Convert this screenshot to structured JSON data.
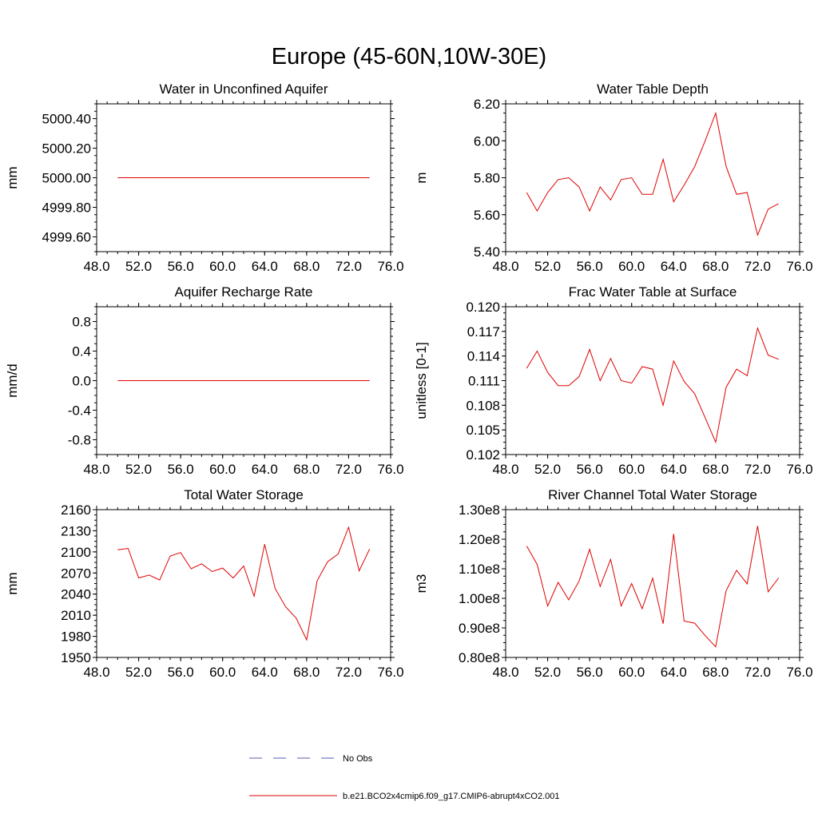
{
  "figure": {
    "title": "Europe (45-60N,10W-30E)"
  },
  "legend": {
    "entries": [
      {
        "label": "No Obs",
        "color": "#5a5ab4",
        "dash": true
      },
      {
        "label": "b.e21.BCO2x4cmip6.f09_g17.CMIP6-abrupt4xCO2.001",
        "color": "#e00000",
        "dash": false
      }
    ]
  },
  "chart_data": [
    {
      "type": "line",
      "title": "Water in Unconfined Aquifer",
      "xlabel": "",
      "ylabel": "mm",
      "xlim": [
        48,
        76
      ],
      "ylim": [
        4999.5,
        5000.5
      ],
      "xticks": [
        "48.0",
        "52.0",
        "56.0",
        "60.0",
        "64.0",
        "68.0",
        "72.0",
        "76.0"
      ],
      "xtick_values": [
        48,
        52,
        56,
        60,
        64,
        68,
        72,
        76
      ],
      "yticks": [
        "4999.60",
        "4999.80",
        "5000.00",
        "5000.20",
        "5000.40"
      ],
      "ytick_values": [
        4999.6,
        4999.8,
        5000.0,
        5000.2,
        5000.4
      ],
      "series": [
        {
          "color": "#e00000",
          "x": [
            50,
            51,
            52,
            53,
            54,
            55,
            56,
            57,
            58,
            59,
            60,
            61,
            62,
            63,
            64,
            65,
            66,
            67,
            68,
            69,
            70,
            71,
            72,
            73,
            74
          ],
          "y": [
            5000,
            5000,
            5000,
            5000,
            5000,
            5000,
            5000,
            5000,
            5000,
            5000,
            5000,
            5000,
            5000,
            5000,
            5000,
            5000,
            5000,
            5000,
            5000,
            5000,
            5000,
            5000,
            5000,
            5000,
            5000
          ]
        }
      ]
    },
    {
      "type": "line",
      "title": "Water Table Depth",
      "xlabel": "",
      "ylabel": "m",
      "xlim": [
        48,
        76
      ],
      "ylim": [
        5.4,
        6.2
      ],
      "xticks": [
        "48.0",
        "52.0",
        "56.0",
        "60.0",
        "64.0",
        "68.0",
        "72.0",
        "76.0"
      ],
      "xtick_values": [
        48,
        52,
        56,
        60,
        64,
        68,
        72,
        76
      ],
      "yticks": [
        "5.40",
        "5.60",
        "5.80",
        "6.00",
        "6.20"
      ],
      "ytick_values": [
        5.4,
        5.6,
        5.8,
        6.0,
        6.2
      ],
      "series": [
        {
          "color": "#e00000",
          "x": [
            50,
            51,
            52,
            53,
            54,
            55,
            56,
            57,
            58,
            59,
            60,
            61,
            62,
            63,
            64,
            65,
            66,
            67,
            68,
            69,
            70,
            71,
            72,
            73,
            74
          ],
          "y": [
            5.72,
            5.62,
            5.72,
            5.79,
            5.8,
            5.75,
            5.62,
            5.75,
            5.68,
            5.79,
            5.8,
            5.71,
            5.71,
            5.9,
            5.67,
            5.76,
            5.86,
            6.0,
            6.15,
            5.86,
            5.71,
            5.72,
            5.49,
            5.63,
            5.66
          ]
        }
      ]
    },
    {
      "type": "line",
      "title": "Aquifer Recharge Rate",
      "xlabel": "",
      "ylabel": "mm/d",
      "xlim": [
        48,
        76
      ],
      "ylim": [
        -1.0,
        1.0
      ],
      "xticks": [
        "48.0",
        "52.0",
        "56.0",
        "60.0",
        "64.0",
        "68.0",
        "72.0",
        "76.0"
      ],
      "xtick_values": [
        48,
        52,
        56,
        60,
        64,
        68,
        72,
        76
      ],
      "yticks": [
        "-0.8",
        "-0.4",
        "0.0",
        "0.4",
        "0.8"
      ],
      "ytick_values": [
        -0.8,
        -0.4,
        0.0,
        0.4,
        0.8
      ],
      "series": [
        {
          "color": "#e00000",
          "x": [
            50,
            51,
            52,
            53,
            54,
            55,
            56,
            57,
            58,
            59,
            60,
            61,
            62,
            63,
            64,
            65,
            66,
            67,
            68,
            69,
            70,
            71,
            72,
            73,
            74
          ],
          "y": [
            0,
            0,
            0,
            0,
            0,
            0,
            0,
            0,
            0,
            0,
            0,
            0,
            0,
            0,
            0,
            0,
            0,
            0,
            0,
            0,
            0,
            0,
            0,
            0,
            0
          ]
        }
      ]
    },
    {
      "type": "line",
      "title": "Frac Water Table at Surface",
      "xlabel": "",
      "ylabel": "unitless [0-1]",
      "xlim": [
        48,
        76
      ],
      "ylim": [
        0.102,
        0.12
      ],
      "xticks": [
        "48.0",
        "52.0",
        "56.0",
        "60.0",
        "64.0",
        "68.0",
        "72.0",
        "76.0"
      ],
      "xtick_values": [
        48,
        52,
        56,
        60,
        64,
        68,
        72,
        76
      ],
      "yticks": [
        "0.102",
        "0.105",
        "0.108",
        "0.111",
        "0.114",
        "0.117",
        "0.120"
      ],
      "ytick_values": [
        0.102,
        0.105,
        0.108,
        0.111,
        0.114,
        0.117,
        0.12
      ],
      "series": [
        {
          "color": "#e00000",
          "x": [
            50,
            51,
            52,
            53,
            54,
            55,
            56,
            57,
            58,
            59,
            60,
            61,
            62,
            63,
            64,
            65,
            66,
            67,
            68,
            69,
            70,
            71,
            72,
            73,
            74
          ],
          "y": [
            0.1125,
            0.1146,
            0.112,
            0.1104,
            0.1104,
            0.1115,
            0.1148,
            0.111,
            0.1137,
            0.111,
            0.1107,
            0.1127,
            0.1124,
            0.108,
            0.1134,
            0.1109,
            0.1094,
            0.1065,
            0.1035,
            0.1102,
            0.1124,
            0.1116,
            0.1174,
            0.1141,
            0.1136
          ]
        }
      ]
    },
    {
      "type": "line",
      "title": "Total Water Storage",
      "xlabel": "",
      "ylabel": "mm",
      "xlim": [
        48,
        76
      ],
      "ylim": [
        1950,
        2160
      ],
      "xticks": [
        "48.0",
        "52.0",
        "56.0",
        "60.0",
        "64.0",
        "68.0",
        "72.0",
        "76.0"
      ],
      "xtick_values": [
        48,
        52,
        56,
        60,
        64,
        68,
        72,
        76
      ],
      "yticks": [
        "1950",
        "1980",
        "2010",
        "2040",
        "2070",
        "2100",
        "2130",
        "2160"
      ],
      "ytick_values": [
        1950,
        1980,
        2010,
        2040,
        2070,
        2100,
        2130,
        2160
      ],
      "series": [
        {
          "color": "#e00000",
          "x": [
            50,
            51,
            52,
            53,
            54,
            55,
            56,
            57,
            58,
            59,
            60,
            61,
            62,
            63,
            64,
            65,
            66,
            67,
            68,
            69,
            70,
            71,
            72,
            73,
            74
          ],
          "y": [
            2103,
            2105,
            2063,
            2067,
            2060,
            2094,
            2099,
            2076,
            2083,
            2072,
            2077,
            2063,
            2080,
            2037,
            2111,
            2048,
            2022,
            2006,
            1975,
            2059,
            2086,
            2097,
            2135,
            2073,
            2104
          ]
        }
      ]
    },
    {
      "type": "line",
      "title": "River Channel Total Water Storage",
      "xlabel": "",
      "ylabel": "m3",
      "xlim": [
        48,
        76
      ],
      "ylim": [
        80000000.0,
        130000000.0
      ],
      "xticks": [
        "48.0",
        "52.0",
        "56.0",
        "60.0",
        "64.0",
        "68.0",
        "72.0",
        "76.0"
      ],
      "xtick_values": [
        48,
        52,
        56,
        60,
        64,
        68,
        72,
        76
      ],
      "yticks": [
        "0.80e8",
        "0.90e8",
        "1.00e8",
        "1.10e8",
        "1.20e8",
        "1.30e8"
      ],
      "ytick_values": [
        80000000.0,
        90000000.0,
        100000000.0,
        110000000.0,
        120000000.0,
        130000000.0
      ],
      "series": [
        {
          "color": "#e00000",
          "x": [
            50,
            51,
            52,
            53,
            54,
            55,
            56,
            57,
            58,
            59,
            60,
            61,
            62,
            63,
            64,
            65,
            66,
            67,
            68,
            69,
            70,
            71,
            72,
            73,
            74
          ],
          "y": [
            117700000.0,
            111500000.0,
            97400000.0,
            105400000.0,
            99500000.0,
            105900000.0,
            116600000.0,
            104000000.0,
            113200000.0,
            97400000.0,
            105000000.0,
            96500000.0,
            106800000.0,
            91400000.0,
            121800000.0,
            92300000.0,
            91600000.0,
            87400000.0,
            83600000.0,
            102600000.0,
            109500000.0,
            104900000.0,
            124500000.0,
            102200000.0,
            106900000.0
          ]
        }
      ]
    }
  ]
}
